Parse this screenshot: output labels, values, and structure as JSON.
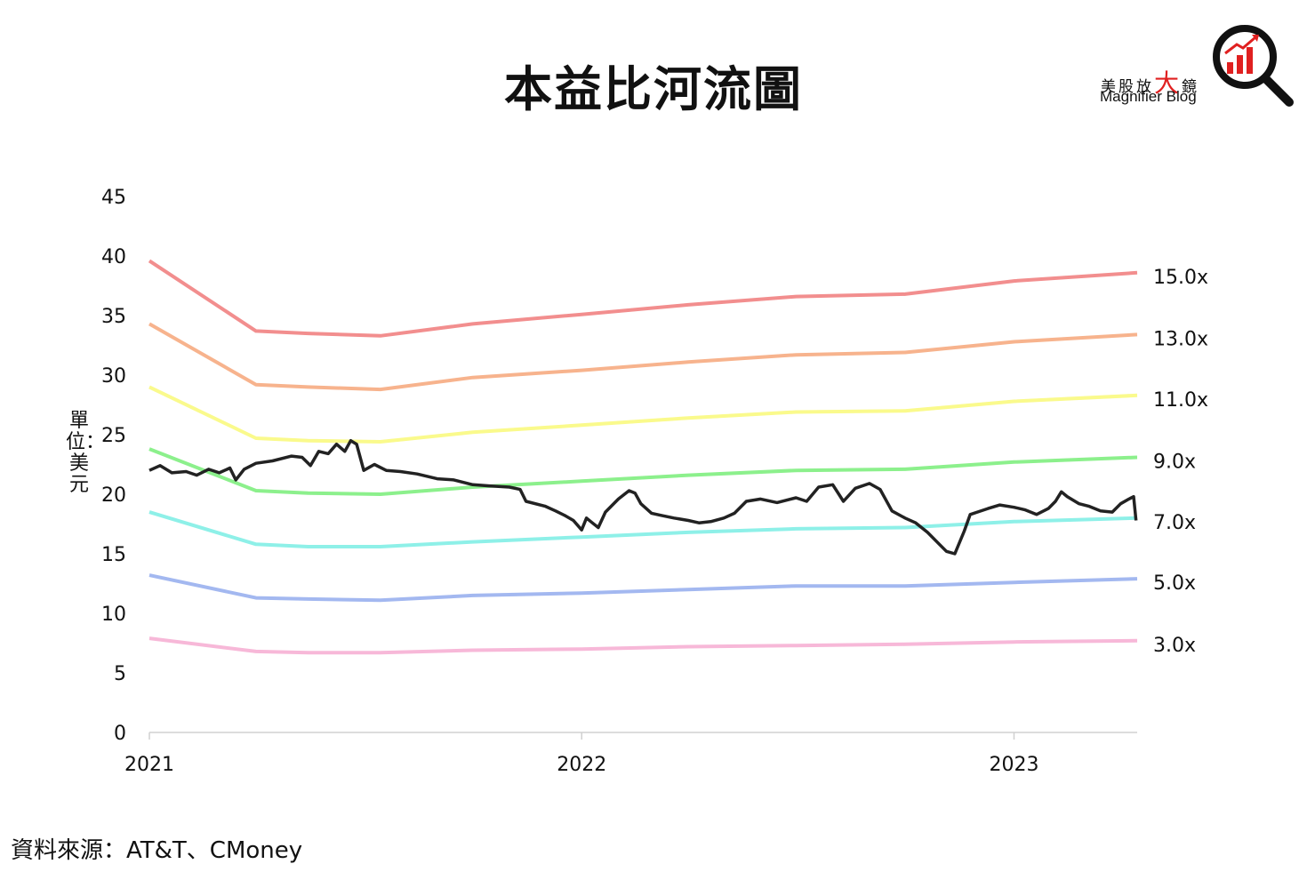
{
  "title": "本益比河流圖",
  "logo": {
    "cn_before": "美股放",
    "cn_big": "大",
    "cn_after": "鏡",
    "en": "Magnifier Blog",
    "icon": "magnifier-bar-chart-icon",
    "accent_color": "#e02020"
  },
  "source": "資料來源：AT&T、CMoney",
  "chart_data": {
    "type": "line",
    "ylabel": "單位：美元",
    "xlim": [
      "2021-01-01",
      "2023-04-15"
    ],
    "ylim": [
      0,
      45
    ],
    "yticks": [
      0,
      5,
      10,
      15,
      20,
      25,
      30,
      35,
      40,
      45
    ],
    "xticks": [
      {
        "date": "2021-01-01",
        "label": "2021"
      },
      {
        "date": "2022-01-01",
        "label": "2022"
      },
      {
        "date": "2023-01-01",
        "label": "2023"
      }
    ],
    "grid": false,
    "bands": [
      {
        "label": "15.0x",
        "color": "#f28e8e",
        "points": [
          [
            "2021-01-01",
            39.6
          ],
          [
            "2021-04-01",
            33.7
          ],
          [
            "2021-05-15",
            33.5
          ],
          [
            "2021-07-15",
            33.3
          ],
          [
            "2021-10-01",
            34.3
          ],
          [
            "2022-01-01",
            35.1
          ],
          [
            "2022-04-01",
            35.9
          ],
          [
            "2022-07-01",
            36.6
          ],
          [
            "2022-10-01",
            36.8
          ],
          [
            "2023-01-01",
            37.9
          ],
          [
            "2023-04-15",
            38.6
          ]
        ]
      },
      {
        "label": "13.0x",
        "color": "#f7b38d",
        "points": [
          [
            "2021-01-01",
            34.3
          ],
          [
            "2021-04-01",
            29.2
          ],
          [
            "2021-05-15",
            29.0
          ],
          [
            "2021-07-15",
            28.8
          ],
          [
            "2021-10-01",
            29.8
          ],
          [
            "2022-01-01",
            30.4
          ],
          [
            "2022-04-01",
            31.1
          ],
          [
            "2022-07-01",
            31.7
          ],
          [
            "2022-10-01",
            31.9
          ],
          [
            "2023-01-01",
            32.8
          ],
          [
            "2023-04-15",
            33.4
          ]
        ]
      },
      {
        "label": "11.0x",
        "color": "#fafa8c",
        "points": [
          [
            "2021-01-01",
            29.0
          ],
          [
            "2021-04-01",
            24.7
          ],
          [
            "2021-05-15",
            24.5
          ],
          [
            "2021-07-15",
            24.4
          ],
          [
            "2021-10-01",
            25.2
          ],
          [
            "2022-01-01",
            25.8
          ],
          [
            "2022-04-01",
            26.4
          ],
          [
            "2022-07-01",
            26.9
          ],
          [
            "2022-10-01",
            27.0
          ],
          [
            "2023-01-01",
            27.8
          ],
          [
            "2023-04-15",
            28.3
          ]
        ]
      },
      {
        "label": "9.0x",
        "color": "#8cf08c",
        "points": [
          [
            "2021-01-01",
            23.8
          ],
          [
            "2021-04-01",
            20.3
          ],
          [
            "2021-05-15",
            20.1
          ],
          [
            "2021-07-15",
            20.0
          ],
          [
            "2021-10-01",
            20.6
          ],
          [
            "2022-01-01",
            21.1
          ],
          [
            "2022-04-01",
            21.6
          ],
          [
            "2022-07-01",
            22.0
          ],
          [
            "2022-10-01",
            22.1
          ],
          [
            "2023-01-01",
            22.7
          ],
          [
            "2023-04-15",
            23.1
          ]
        ]
      },
      {
        "label": "7.0x",
        "color": "#8ef0e8",
        "points": [
          [
            "2021-01-01",
            18.5
          ],
          [
            "2021-04-01",
            15.8
          ],
          [
            "2021-05-15",
            15.6
          ],
          [
            "2021-07-15",
            15.6
          ],
          [
            "2021-10-01",
            16.0
          ],
          [
            "2022-01-01",
            16.4
          ],
          [
            "2022-04-01",
            16.8
          ],
          [
            "2022-07-01",
            17.1
          ],
          [
            "2022-10-01",
            17.2
          ],
          [
            "2023-01-01",
            17.7
          ],
          [
            "2023-04-15",
            18.0
          ]
        ]
      },
      {
        "label": "5.0x",
        "color": "#a3b8f0",
        "points": [
          [
            "2021-01-01",
            13.2
          ],
          [
            "2021-04-01",
            11.3
          ],
          [
            "2021-05-15",
            11.2
          ],
          [
            "2021-07-15",
            11.1
          ],
          [
            "2021-10-01",
            11.5
          ],
          [
            "2022-01-01",
            11.7
          ],
          [
            "2022-04-01",
            12.0
          ],
          [
            "2022-07-01",
            12.3
          ],
          [
            "2022-10-01",
            12.3
          ],
          [
            "2023-01-01",
            12.6
          ],
          [
            "2023-04-15",
            12.9
          ]
        ]
      },
      {
        "label": "3.0x",
        "color": "#f7b8d8",
        "points": [
          [
            "2021-01-01",
            7.9
          ],
          [
            "2021-04-01",
            6.8
          ],
          [
            "2021-05-15",
            6.7
          ],
          [
            "2021-07-15",
            6.7
          ],
          [
            "2021-10-01",
            6.9
          ],
          [
            "2022-01-01",
            7.0
          ],
          [
            "2022-04-01",
            7.2
          ],
          [
            "2022-07-01",
            7.3
          ],
          [
            "2022-10-01",
            7.4
          ],
          [
            "2023-01-01",
            7.6
          ],
          [
            "2023-04-15",
            7.7
          ]
        ]
      }
    ],
    "price": {
      "color": "#222222",
      "points": [
        [
          "2021-01-01",
          22.0
        ],
        [
          "2021-01-10",
          22.4
        ],
        [
          "2021-01-20",
          21.8
        ],
        [
          "2021-02-01",
          21.9
        ],
        [
          "2021-02-10",
          21.6
        ],
        [
          "2021-02-20",
          22.1
        ],
        [
          "2021-03-01",
          21.8
        ],
        [
          "2021-03-10",
          22.2
        ],
        [
          "2021-03-15",
          21.2
        ],
        [
          "2021-03-22",
          22.1
        ],
        [
          "2021-04-01",
          22.6
        ],
        [
          "2021-04-15",
          22.8
        ],
        [
          "2021-05-01",
          23.2
        ],
        [
          "2021-05-10",
          23.1
        ],
        [
          "2021-05-17",
          22.4
        ],
        [
          "2021-05-24",
          23.6
        ],
        [
          "2021-06-01",
          23.4
        ],
        [
          "2021-06-08",
          24.2
        ],
        [
          "2021-06-15",
          23.6
        ],
        [
          "2021-06-20",
          24.5
        ],
        [
          "2021-06-25",
          24.2
        ],
        [
          "2021-07-01",
          22.0
        ],
        [
          "2021-07-10",
          22.5
        ],
        [
          "2021-07-20",
          22.0
        ],
        [
          "2021-08-01",
          21.9
        ],
        [
          "2021-08-15",
          21.7
        ],
        [
          "2021-09-01",
          21.3
        ],
        [
          "2021-09-15",
          21.2
        ],
        [
          "2021-10-01",
          20.8
        ],
        [
          "2021-10-15",
          20.7
        ],
        [
          "2021-11-01",
          20.6
        ],
        [
          "2021-11-10",
          20.4
        ],
        [
          "2021-11-15",
          19.4
        ],
        [
          "2021-12-01",
          19.0
        ],
        [
          "2021-12-10",
          18.6
        ],
        [
          "2021-12-18",
          18.2
        ],
        [
          "2021-12-25",
          17.8
        ],
        [
          "2022-01-01",
          17.0
        ],
        [
          "2022-01-05",
          18.0
        ],
        [
          "2022-01-10",
          17.6
        ],
        [
          "2022-01-15",
          17.2
        ],
        [
          "2022-01-21",
          18.5
        ],
        [
          "2022-02-01",
          19.6
        ],
        [
          "2022-02-10",
          20.3
        ],
        [
          "2022-02-15",
          20.1
        ],
        [
          "2022-02-20",
          19.2
        ],
        [
          "2022-03-01",
          18.4
        ],
        [
          "2022-03-10",
          18.2
        ],
        [
          "2022-03-20",
          18.0
        ],
        [
          "2022-04-01",
          17.8
        ],
        [
          "2022-04-10",
          17.6
        ],
        [
          "2022-04-20",
          17.7
        ],
        [
          "2022-05-01",
          18.0
        ],
        [
          "2022-05-10",
          18.4
        ],
        [
          "2022-05-20",
          19.4
        ],
        [
          "2022-06-01",
          19.6
        ],
        [
          "2022-06-15",
          19.3
        ],
        [
          "2022-07-01",
          19.7
        ],
        [
          "2022-07-10",
          19.4
        ],
        [
          "2022-07-20",
          20.6
        ],
        [
          "2022-08-01",
          20.8
        ],
        [
          "2022-08-10",
          19.4
        ],
        [
          "2022-08-20",
          20.5
        ],
        [
          "2022-09-01",
          20.9
        ],
        [
          "2022-09-10",
          20.4
        ],
        [
          "2022-09-20",
          18.6
        ],
        [
          "2022-10-01",
          18.0
        ],
        [
          "2022-10-10",
          17.6
        ],
        [
          "2022-10-20",
          16.8
        ],
        [
          "2022-10-30",
          15.8
        ],
        [
          "2022-11-05",
          15.2
        ],
        [
          "2022-11-12",
          15.0
        ],
        [
          "2022-11-20",
          16.9
        ],
        [
          "2022-11-25",
          18.3
        ],
        [
          "2022-12-01",
          18.5
        ],
        [
          "2022-12-10",
          18.8
        ],
        [
          "2022-12-20",
          19.1
        ],
        [
          "2023-01-01",
          18.9
        ],
        [
          "2023-01-10",
          18.7
        ],
        [
          "2023-01-20",
          18.3
        ],
        [
          "2023-01-30",
          18.8
        ],
        [
          "2023-02-05",
          19.4
        ],
        [
          "2023-02-10",
          20.2
        ],
        [
          "2023-02-15",
          19.8
        ],
        [
          "2023-02-25",
          19.2
        ],
        [
          "2023-03-05",
          19.0
        ],
        [
          "2023-03-15",
          18.6
        ],
        [
          "2023-03-25",
          18.5
        ],
        [
          "2023-04-01",
          19.2
        ],
        [
          "2023-04-08",
          19.6
        ],
        [
          "2023-04-12",
          19.8
        ],
        [
          "2023-04-14",
          17.8
        ]
      ]
    }
  }
}
